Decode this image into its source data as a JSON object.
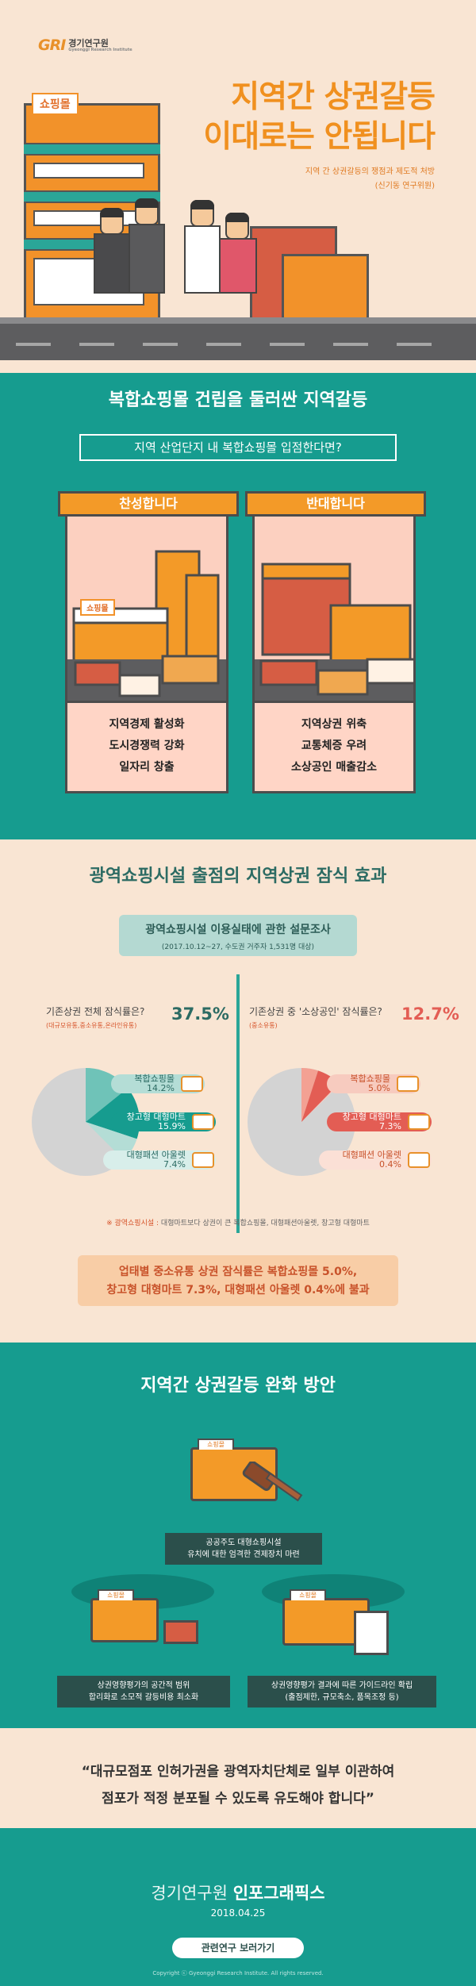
{
  "header": {
    "logo_mark": "GRI",
    "logo_name": "경기연구원",
    "logo_sub": "Gyeonggi Research Institute",
    "title_line1": "지역간 상권갈등",
    "title_line2": "이대로는 안됩니다",
    "subtitle": "지역 간 상권갈등의 쟁점과 제도적 처방",
    "author": "(신기동 연구위원)",
    "mall_sign": "쇼핑몰"
  },
  "section1": {
    "title": "복합쇼핑몰 건립을 둘러싼 지역갈등",
    "question": "지역 산업단지 내 복합쇼핑몰 입점한다면?",
    "pro": {
      "label": "찬성합니다",
      "sign": "쇼핑몰",
      "points": [
        "지역경제 활성화",
        "도시경쟁력 강화",
        "일자리 창출"
      ]
    },
    "con": {
      "label": "반대합니다",
      "points": [
        "지역상권 위축",
        "교통체증 우려",
        "소상공인 매출감소"
      ]
    }
  },
  "section2": {
    "title": "광역쇼핑시설 출점의 지역상권 잠식 효과",
    "survey_title": "광역쇼핑시설 이용실태에 관한 설문조사",
    "survey_sub": "(2017.10.12~27, 수도권 거주자 1,531명 대상)",
    "left": {
      "question": "기존상권 전체 잠식률은?",
      "note": "(대규모유통,중소유통,온라인유통)",
      "value": "37.5%",
      "items": [
        {
          "name": "복합쇼핑몰",
          "value": "14.2%"
        },
        {
          "name": "창고형 대형마트",
          "value": "15.9%"
        },
        {
          "name": "대형패션 아울렛",
          "value": "7.4%"
        }
      ]
    },
    "right": {
      "question": "기존상권 중 '소상공인' 잠식률은?",
      "note": "(중소유통)",
      "value": "12.7%",
      "items": [
        {
          "name": "복합쇼핑몰",
          "value": "5.0%"
        },
        {
          "name": "창고형 대형마트",
          "value": "7.3%"
        },
        {
          "name": "대형패션 아울렛",
          "value": "0.4%"
        }
      ]
    },
    "footnote_mark": "※ 광역쇼핑시설 :",
    "footnote": "대형마트보다 상권이 큰 복합쇼핑몰, 대형패션아울렛, 창고형 대형마트",
    "summary_line1": "업태별 중소유통 상권 잠식률은 복합쇼핑몰 5.0%,",
    "summary_line2": "창고형 대형마트 7.3%, 대형패션 아울렛 0.4%에 불과",
    "colors": {
      "teal_dark": "#169c8f",
      "teal_light": "#6fc3b8",
      "teal_pale": "#b4ddd6",
      "coral": "#e35d54",
      "coral_light": "#f3a193",
      "coral_pale": "#f7cbbf",
      "grey": "#d3d3d3"
    }
  },
  "section3": {
    "title": "지역간 상권갈등 완화 방안",
    "folder_tab": "쇼핑몰",
    "solution1_line1": "공공주도 대형쇼핑시설",
    "solution1_line2": "유치에 대한 엄격한 견제장치 마련",
    "solution2_line1": "상권영향평가의 공간적 범위",
    "solution2_line2": "합리화로 소모적 갈등비용 최소화",
    "solution3_line1": "상권영향평가 결과에 따른 가이드라인 확립",
    "solution3_line2": "(출점제한, 규모축소, 품목조정 등)"
  },
  "quote": {
    "line1": "“대규모점포 인허가권을 광역자치단체로 일부 이관하여",
    "line2": "점포가 적정 분포될 수 있도록 유도해야 합니다”"
  },
  "footer": {
    "brand_light": "경기연구원",
    "brand_bold": "인포그래픽스",
    "date": "2018.04.25",
    "button": "관련연구 보러가기",
    "copyright": "Copyright ⓒ Gyeonggi Research Institute. All rights reserved."
  }
}
